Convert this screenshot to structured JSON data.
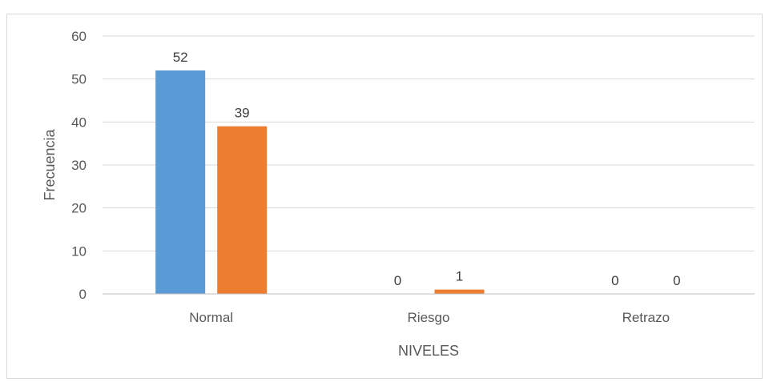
{
  "chart_data": {
    "type": "bar",
    "categories": [
      "Normal",
      "Riesgo",
      "Retrazo"
    ],
    "series": [
      {
        "values": [
          52,
          0,
          0
        ],
        "color": "#5b9bd5"
      },
      {
        "values": [
          39,
          1,
          0
        ],
        "color": "#ed7d31"
      }
    ],
    "xlabel": "NIVELES",
    "ylabel": "Frecuencia",
    "ylim": [
      0,
      60
    ],
    "yticks": [
      0,
      10,
      20,
      30,
      40,
      50,
      60
    ],
    "grid": true,
    "data_labels": true,
    "legend": "none"
  }
}
